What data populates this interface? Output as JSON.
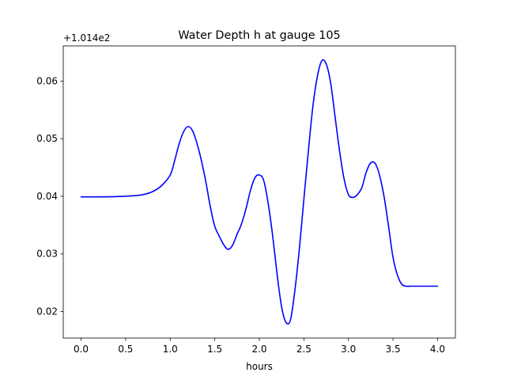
{
  "chart_data": {
    "type": "line",
    "title": "Water Depth h at gauge 105",
    "xlabel": "hours",
    "ylabel": "",
    "y_offset_label": "+1.014e2",
    "xlim": [
      -0.2,
      4.2
    ],
    "ylim": [
      0.0154,
      0.0661
    ],
    "x_ticks": [
      0.0,
      0.5,
      1.0,
      1.5,
      2.0,
      2.5,
      3.0,
      3.5,
      4.0
    ],
    "x_tick_labels": [
      "0.0",
      "0.5",
      "1.0",
      "1.5",
      "2.0",
      "2.5",
      "3.0",
      "3.5",
      "4.0"
    ],
    "y_ticks": [
      0.02,
      0.03,
      0.04,
      0.05,
      0.06
    ],
    "y_tick_labels": [
      "0.02",
      "0.03",
      "0.04",
      "0.05",
      "0.06"
    ],
    "grid": false,
    "series": [
      {
        "color": "#0000ff",
        "x": [
          0.0,
          0.2,
          0.4,
          0.6,
          0.7,
          0.8,
          0.9,
          1.0,
          1.05,
          1.1,
          1.15,
          1.2,
          1.25,
          1.3,
          1.35,
          1.4,
          1.45,
          1.5,
          1.55,
          1.6,
          1.65,
          1.7,
          1.75,
          1.8,
          1.85,
          1.9,
          1.95,
          2.0,
          2.05,
          2.1,
          2.15,
          2.2,
          2.25,
          2.3,
          2.35,
          2.4,
          2.45,
          2.5,
          2.55,
          2.6,
          2.65,
          2.7,
          2.75,
          2.8,
          2.85,
          2.9,
          2.95,
          3.0,
          3.05,
          3.1,
          3.15,
          3.2,
          3.25,
          3.3,
          3.35,
          3.4,
          3.45,
          3.5,
          3.55,
          3.6,
          3.65,
          3.7,
          3.75,
          3.8,
          3.85,
          3.9,
          3.95,
          4.0
        ],
        "y": [
          0.0399,
          0.0399,
          0.03995,
          0.0401,
          0.0403,
          0.0408,
          0.0418,
          0.0437,
          0.0462,
          0.0491,
          0.0512,
          0.0521,
          0.0514,
          0.0492,
          0.0462,
          0.0425,
          0.0382,
          0.0348,
          0.0331,
          0.0316,
          0.0308,
          0.0315,
          0.0334,
          0.0352,
          0.0378,
          0.041,
          0.0432,
          0.0437,
          0.0427,
          0.0387,
          0.0331,
          0.0264,
          0.0208,
          0.0181,
          0.0186,
          0.0238,
          0.031,
          0.0395,
          0.0478,
          0.0555,
          0.0607,
          0.0635,
          0.063,
          0.0597,
          0.0538,
          0.0479,
          0.0431,
          0.0403,
          0.0398,
          0.0403,
          0.0415,
          0.0442,
          0.0458,
          0.0457,
          0.0436,
          0.0399,
          0.0348,
          0.0294,
          0.0263,
          0.0247,
          0.0244,
          0.0244,
          0.0244,
          0.0244,
          0.0244,
          0.0244,
          0.0244,
          0.0244
        ]
      }
    ]
  }
}
